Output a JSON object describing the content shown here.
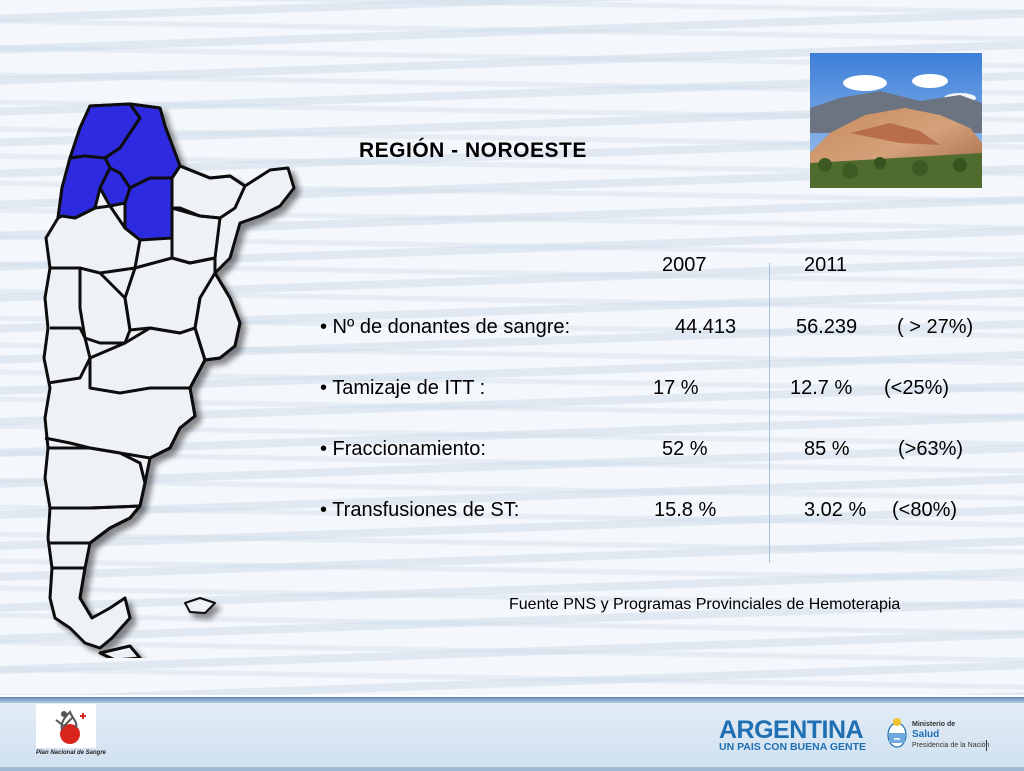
{
  "slide": {
    "title": "REGIÓN - NOROESTE",
    "years": [
      "2007",
      "2011"
    ],
    "rows": [
      {
        "label": "• Nº de donantes de sangre:",
        "v2007": "44.413",
        "v2011": "56.239",
        "change": "( > 27%)"
      },
      {
        "label": "• Tamizaje de ITT :",
        "v2007": "17 %",
        "v2011": "12.7 %",
        "change": "(<25%)"
      },
      {
        "label": "• Fraccionamiento:",
        "v2007": "52 %",
        "v2011": "85 %",
        "change": "(>63%)"
      },
      {
        "label": "• Transfusiones de ST:",
        "v2007": "15.8 %",
        "v2011": "3.02 %",
        "change": "(<80%)"
      }
    ],
    "source": "Fuente PNS y Programas Provinciales de Hemoterapia"
  },
  "footer": {
    "pns_caption": "Plan Nacional de Sangre",
    "argentina": "ARGENTINA",
    "argentina_sub": "UN PAIS CON BUENA GENTE",
    "ministerio": "Ministerio de",
    "salud": "Salud",
    "presidencia": "Presidencia de la Nación"
  },
  "colors": {
    "highlight_region": "#2d2be0",
    "map_fill": "#eef1f5",
    "brand_blue": "#1f6fb3"
  },
  "icons": [
    "argentina-map",
    "landscape-photo",
    "pns-logo",
    "national-coat-of-arms"
  ]
}
